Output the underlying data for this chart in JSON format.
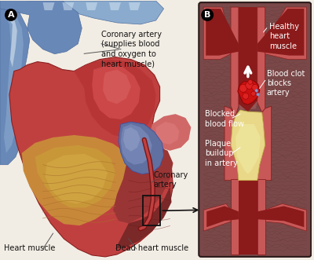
{
  "bg_color": "#f2ede4",
  "panel_a_label": "A",
  "panel_b_label": "B",
  "annotations": {
    "coronary_artery_title": "Coronary artery\n(supplies blood\nand oxygen to\nheart muscle)",
    "coronary_artery_simple": "Coronary\nartery",
    "heart_muscle": "Heart muscle",
    "dead_heart_muscle": "Dead heart muscle",
    "healthy_heart_muscle": "Healthy\nheart\nmuscle",
    "blood_clot": "Blood clot\nblocks\nartery",
    "blocked_flow": "Blocked\nblood flow",
    "plaque": "Plaque\nbuildup\nin artery"
  },
  "heart_outer": "#c04040",
  "heart_mid": "#d05535",
  "heart_dark": "#8b2020",
  "heart_dead_tan": "#c8883a",
  "heart_dead_gold": "#c89838",
  "heart_dead_lt": "#d4a845",
  "heart_dark_lower": "#7a2828",
  "aorta_blue": "#6888b8",
  "aorta_lt": "#8aabce",
  "aorta_white": "#d0dff0",
  "pulm_blue": "#6070a0",
  "pulm_lt": "#8090c0",
  "vessel_red": "#c03030",
  "bg_muscle_b": "#b07070",
  "artery_wall": "#c85858",
  "artery_wall_lt": "#d87878",
  "artery_lumen": "#8b1a1a",
  "plaque_color": "#e8d888",
  "plaque_lt": "#f0e8a0",
  "clot_color": "#cc1111",
  "clot_dark": "#880808",
  "panel_b_bg": "#7a4848",
  "panel_b_border": "#2a1a1a",
  "text_dark": "#111111",
  "text_white": "#ffffff",
  "fontsize_small": 7.0,
  "fontsize_panel": 10
}
